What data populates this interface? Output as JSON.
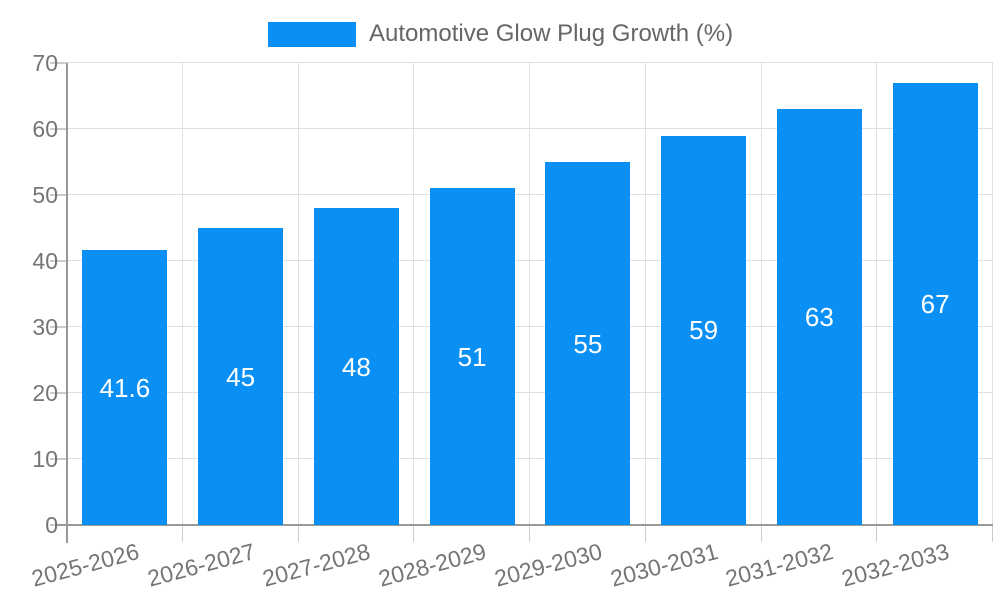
{
  "legend": {
    "label": "Automotive Glow Plug Growth (%)"
  },
  "chart_data": {
    "type": "bar",
    "title": "Automotive Glow Plug Growth (%)",
    "categories": [
      "2025-2026",
      "2026-2027",
      "2027-2028",
      "2028-2029",
      "2029-2030",
      "2030-2031",
      "2031-2032",
      "2032-2033"
    ],
    "series": [
      {
        "name": "Automotive Glow Plug Growth (%)",
        "values": [
          41.6,
          45,
          48,
          51,
          55,
          59,
          63,
          67
        ]
      }
    ],
    "value_labels": [
      "41.6",
      "45",
      "48",
      "51",
      "55",
      "59",
      "63",
      "67"
    ],
    "xlabel": "",
    "ylabel": "",
    "ylim": [
      0,
      70
    ],
    "y_ticks": [
      0,
      10,
      20,
      30,
      40,
      50,
      60,
      70
    ],
    "grid": true,
    "legend_position": "top"
  },
  "colors": {
    "bar": "#0a90f5",
    "grid": "#e0e0e0",
    "axis": "#999999",
    "tick": "#cccccc",
    "axis_text": "#757575",
    "legend_text": "#666666",
    "bar_label_text": "#ffffff",
    "background": "#ffffff"
  }
}
